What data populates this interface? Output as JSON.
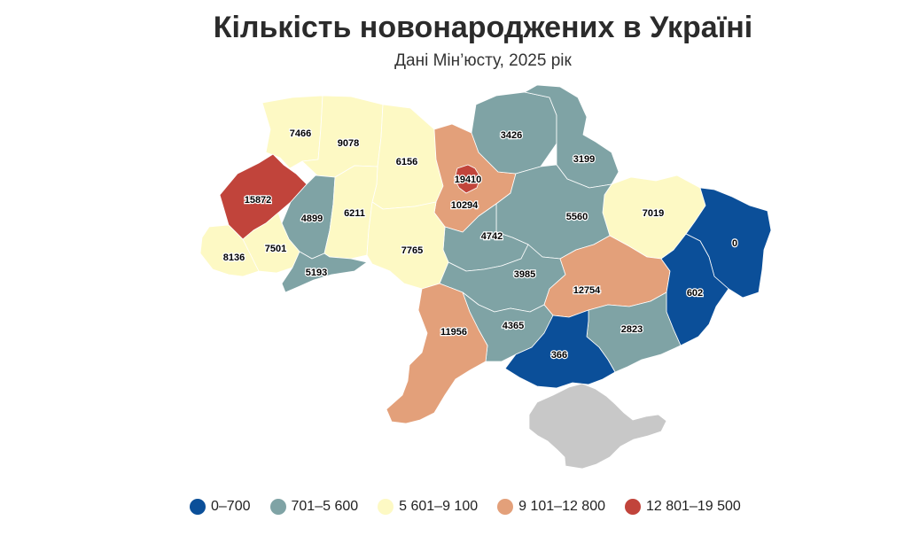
{
  "title": "Кількість новонароджених в Україні",
  "subtitle": "Дані Мін’юсту, 2025 рік",
  "colors": {
    "c1": "#0b4f99",
    "c2": "#7fa3a5",
    "c3": "#fdf9c4",
    "c4": "#e3a07a",
    "c5": "#c1443b",
    "crimea": "#c8c8c8"
  },
  "legend": [
    {
      "label": "0–700",
      "color": "#0b4f99"
    },
    {
      "label": "701–5 600",
      "color": "#7fa3a5"
    },
    {
      "label": "5 601–9 100",
      "color": "#fdf9c4"
    },
    {
      "label": "9 101–12 800",
      "color": "#e3a07a"
    },
    {
      "label": "12 801–19 500",
      "color": "#c1443b"
    }
  ],
  "regions": [
    {
      "id": "volyn",
      "value": 7466,
      "label": "7466"
    },
    {
      "id": "rivne",
      "value": 9078,
      "label": "9078"
    },
    {
      "id": "zhytomyr",
      "value": 6156,
      "label": "6156"
    },
    {
      "id": "kyiv-city",
      "value": 19410,
      "label": "19410"
    },
    {
      "id": "kyiv-oblast",
      "value": 10294,
      "label": "10294"
    },
    {
      "id": "chernihiv",
      "value": 3426,
      "label": "3426"
    },
    {
      "id": "sumy",
      "value": 3199,
      "label": "3199"
    },
    {
      "id": "kharkiv",
      "value": 7019,
      "label": "7019"
    },
    {
      "id": "poltava",
      "value": 5560,
      "label": "5560"
    },
    {
      "id": "cherkasy",
      "value": 4742,
      "label": "4742"
    },
    {
      "id": "lviv",
      "value": 15872,
      "label": "15872"
    },
    {
      "id": "ternopil",
      "value": 4899,
      "label": "4899"
    },
    {
      "id": "khmelnytskyi",
      "value": 6211,
      "label": "6211"
    },
    {
      "id": "vinnytsia",
      "value": 7765,
      "label": "7765"
    },
    {
      "id": "zakarpattia",
      "value": 8136,
      "label": "8136"
    },
    {
      "id": "ivano-frankivsk",
      "value": 7501,
      "label": "7501"
    },
    {
      "id": "chernivtsi",
      "value": 5193,
      "label": "5193"
    },
    {
      "id": "kirovohrad",
      "value": 3985,
      "label": "3985"
    },
    {
      "id": "dnipropetrovsk",
      "value": 12754,
      "label": "12754"
    },
    {
      "id": "luhansk",
      "value": 0,
      "label": "0"
    },
    {
      "id": "donetsk",
      "value": 602,
      "label": "602"
    },
    {
      "id": "mykolaiv",
      "value": 4365,
      "label": "4365"
    },
    {
      "id": "odesa",
      "value": 11956,
      "label": "11956"
    },
    {
      "id": "zaporizhzhia",
      "value": 2823,
      "label": "2823"
    },
    {
      "id": "kherson",
      "value": 366,
      "label": "366"
    }
  ]
}
